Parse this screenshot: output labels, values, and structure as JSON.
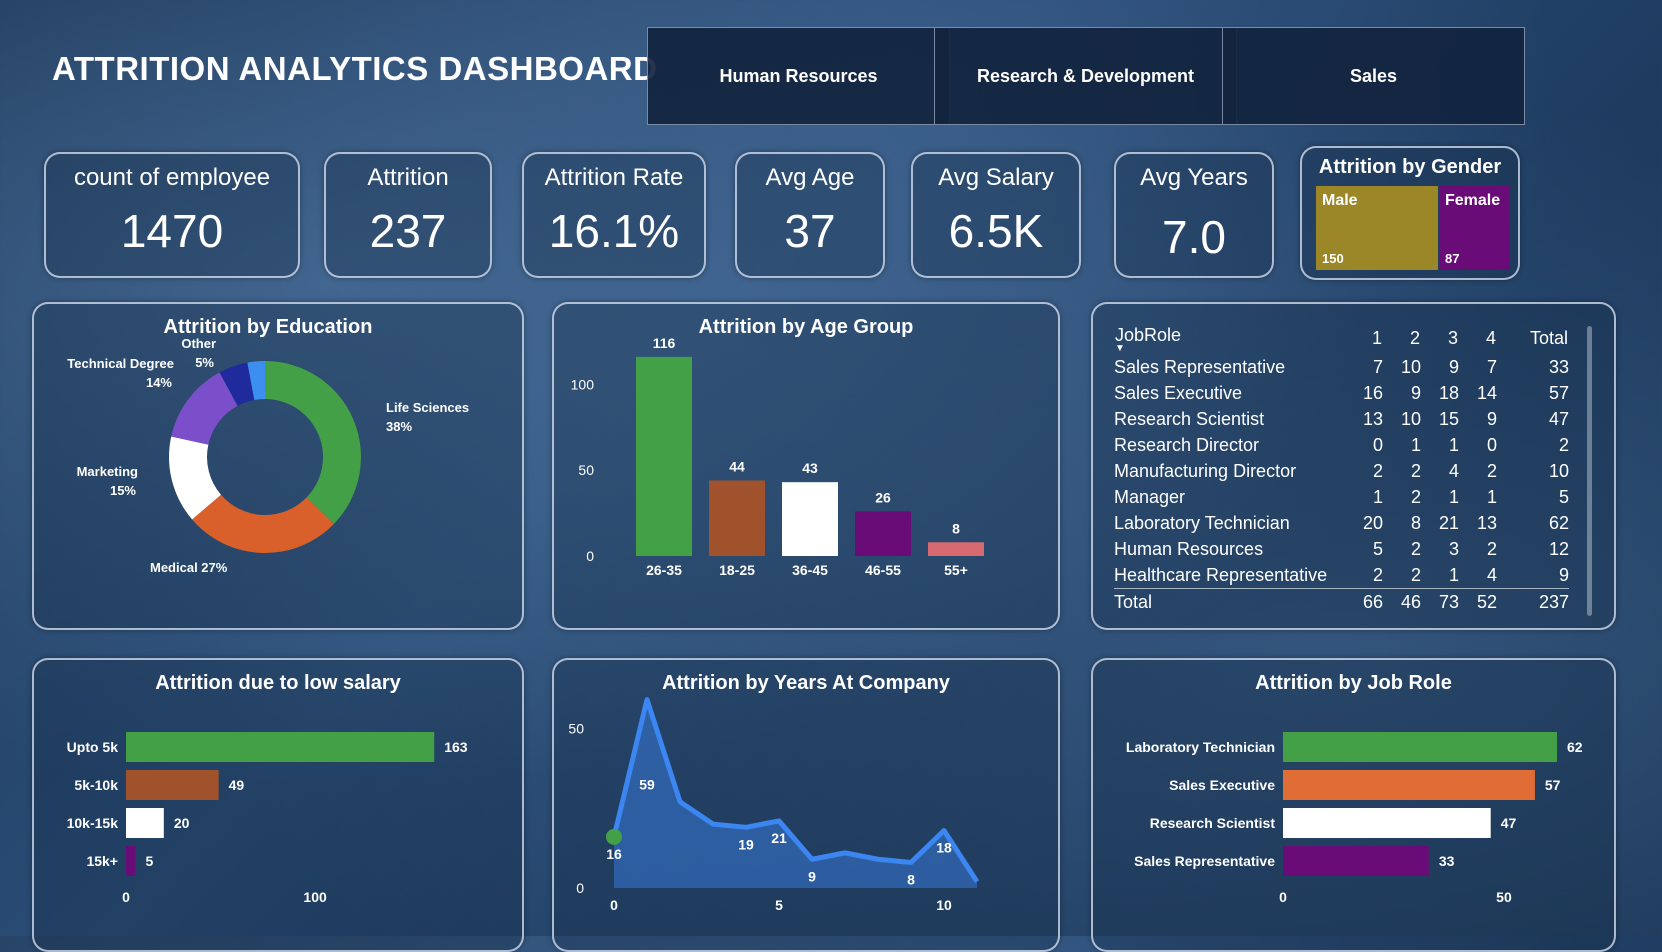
{
  "title": "ATTRITION ANALYTICS DASHBOARD",
  "departments": [
    "Human Resources",
    "Research & Development",
    "Sales"
  ],
  "kpis": [
    {
      "label": "count of employee",
      "value": "1470"
    },
    {
      "label": "Attrition",
      "value": "237"
    },
    {
      "label": "Attrition Rate",
      "value": "16.1%"
    },
    {
      "label": "Avg Age",
      "value": "37"
    },
    {
      "label": "Avg Salary",
      "value": "6.5K"
    },
    {
      "label": "Avg Years",
      "value": "7.0"
    }
  ],
  "gender": {
    "title": "Attrition by Gender",
    "items": [
      {
        "label": "Male",
        "value": "150",
        "color": "#9b8727"
      },
      {
        "label": "Female",
        "value": "87",
        "color": "#6a0c78"
      }
    ]
  },
  "panels": {
    "education": "Attrition by Education",
    "age": "Attrition by Age Group",
    "salary": "Attrition due to low salary",
    "years": "Attrition by Years At Company",
    "jobrole": "Attrition by Job Role"
  },
  "matrix": {
    "header": [
      "JobRole",
      "1",
      "2",
      "3",
      "4",
      "Total"
    ],
    "rows": [
      [
        "Sales Representative",
        "7",
        "10",
        "9",
        "7",
        "33"
      ],
      [
        "Sales Executive",
        "16",
        "9",
        "18",
        "14",
        "57"
      ],
      [
        "Research Scientist",
        "13",
        "10",
        "15",
        "9",
        "47"
      ],
      [
        "Research Director",
        "0",
        "1",
        "1",
        "0",
        "2"
      ],
      [
        "Manufacturing Director",
        "2",
        "2",
        "4",
        "2",
        "10"
      ],
      [
        "Manager",
        "1",
        "2",
        "1",
        "1",
        "5"
      ],
      [
        "Laboratory Technician",
        "20",
        "8",
        "21",
        "13",
        "62"
      ],
      [
        "Human Resources",
        "5",
        "2",
        "3",
        "2",
        "12"
      ],
      [
        "Healthcare Representative",
        "2",
        "2",
        "1",
        "4",
        "9"
      ]
    ],
    "total": [
      "Total",
      "66",
      "46",
      "73",
      "52",
      "237"
    ]
  },
  "chart_data": [
    {
      "id": "education",
      "type": "pie",
      "title": "Attrition by Education",
      "slices": [
        {
          "label": "Life Sciences",
          "pct": "38%",
          "value": 38,
          "color": "#43a047"
        },
        {
          "label": "Medical",
          "pct": "27%",
          "value": 27,
          "color": "#d9602b"
        },
        {
          "label": "Marketing",
          "pct": "15%",
          "value": 15,
          "color": "#ffffff"
        },
        {
          "label": "Technical Degree",
          "pct": "14%",
          "value": 14,
          "color": "#7b4fc9"
        },
        {
          "label": "Other",
          "pct": "5%",
          "value": 5,
          "color": "#1f2b9c"
        },
        {
          "label": "",
          "pct": "",
          "value": 3,
          "color": "#3c8ff0"
        }
      ]
    },
    {
      "id": "age",
      "type": "bar",
      "title": "Attrition by Age Group",
      "categories": [
        "26-35",
        "18-25",
        "36-45",
        "46-55",
        "55+"
      ],
      "values": [
        116,
        44,
        43,
        26,
        8
      ],
      "colors": [
        "#43a047",
        "#a0522d",
        "#ffffff",
        "#6a0c78",
        "#d66a70"
      ],
      "yticks": [
        0,
        50,
        100
      ],
      "ylim": [
        0,
        120
      ]
    },
    {
      "id": "salary",
      "type": "bar",
      "orientation": "horizontal",
      "title": "Attrition due to low salary",
      "categories": [
        "Upto 5k",
        "5k-10k",
        "10k-15k",
        "15k+"
      ],
      "values": [
        163,
        49,
        20,
        5
      ],
      "colors": [
        "#43a047",
        "#a0522d",
        "#ffffff",
        "#6a0c78"
      ],
      "xticks": [
        0,
        100
      ],
      "xlim": [
        0,
        165
      ]
    },
    {
      "id": "years",
      "type": "area",
      "title": "Attrition by Years At Company",
      "x": [
        0,
        1,
        2,
        3,
        4,
        5,
        6,
        7,
        8,
        9,
        10,
        11
      ],
      "y": [
        16,
        59,
        27,
        20,
        19,
        21,
        9,
        11,
        9,
        8,
        18,
        2
      ],
      "labels": [
        {
          "i": 0,
          "text": "16"
        },
        {
          "i": 1,
          "text": "59"
        },
        {
          "i": 4,
          "text": "19"
        },
        {
          "i": 5,
          "text": "21"
        },
        {
          "i": 6,
          "text": "9"
        },
        {
          "i": 9,
          "text": "8"
        },
        {
          "i": 10,
          "text": "18"
        }
      ],
      "xticks": [
        0,
        5,
        10
      ],
      "yticks": [
        0,
        50
      ],
      "xlim": [
        0,
        11
      ],
      "ylim": [
        0,
        62
      ],
      "color": "#3b86f0"
    },
    {
      "id": "jobrole",
      "type": "bar",
      "orientation": "horizontal",
      "title": "Attrition by Job Role",
      "categories": [
        "Laboratory Technician",
        "Sales Executive",
        "Research Scientist",
        "Sales Representative"
      ],
      "values": [
        62,
        57,
        47,
        33
      ],
      "colors": [
        "#43a047",
        "#e06c36",
        "#ffffff",
        "#6a0c78"
      ],
      "xticks": [
        0,
        50
      ],
      "xlim": [
        0,
        62
      ]
    }
  ]
}
